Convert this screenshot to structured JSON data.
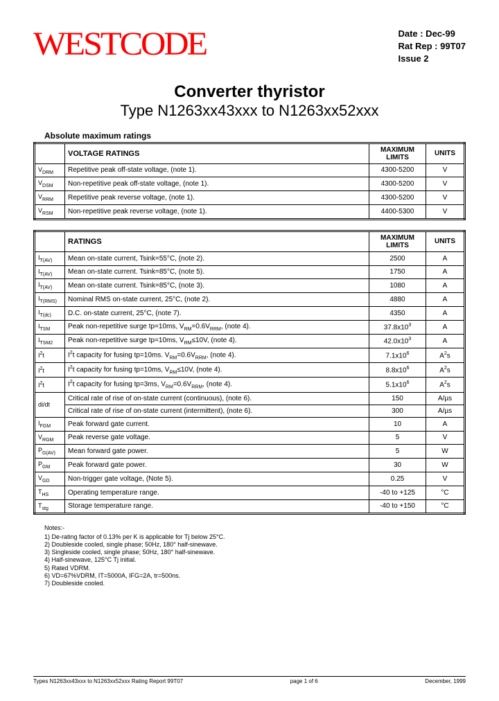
{
  "logo": "WESTCODE",
  "meta": {
    "date_label": "Date : Dec-99",
    "rat_rep": "Rat Rep : 99T07",
    "issue": "Issue 2"
  },
  "title": {
    "main": "Converter thyristor",
    "sub": "Type N1263xx43xxx to N1263xx52xxx"
  },
  "section1_label": "Absolute maximum ratings",
  "table1": {
    "head": [
      "",
      "VOLTAGE RATINGS",
      "MAXIMUM LIMITS",
      "UNITS"
    ],
    "rows": [
      {
        "sym": "V",
        "sub": "DRM",
        "desc": "Repetitive peak off-state voltage, (note 1).",
        "lim": "4300-5200",
        "unit": "V"
      },
      {
        "sym": "V",
        "sub": "DSM",
        "desc": "Non-repetitive peak off-state voltage, (note 1).",
        "lim": "4300-5200",
        "unit": "V"
      },
      {
        "sym": "V",
        "sub": "RRM",
        "desc": "Repetitive peak reverse voltage, (note 1).",
        "lim": "4300-5200",
        "unit": "V"
      },
      {
        "sym": "V",
        "sub": "RSM",
        "desc": "Non-repetitive peak reverse voltage, (note 1).",
        "lim": "4400-5300",
        "unit": "V"
      }
    ]
  },
  "table2": {
    "head": [
      "",
      "RATINGS",
      "MAXIMUM LIMITS",
      "UNITS"
    ],
    "rows": [
      {
        "sym": "I",
        "sub": "T(AV)",
        "desc": "Mean on-state current, Tsink=55°C, (note 2).",
        "lim": "2500",
        "unit": "A"
      },
      {
        "sym": "I",
        "sub": "T(AV)",
        "desc": "Mean on-state current. Tsink=85°C, (note 5).",
        "lim": "1750",
        "unit": "A"
      },
      {
        "sym": "I",
        "sub": "T(AV)",
        "desc": "Mean on-state current. Tsink=85°C, (note 3).",
        "lim": "1080",
        "unit": "A"
      },
      {
        "sym": "I",
        "sub": "T(RMS)",
        "desc": "Nominal RMS on-state current, 25°C, (note 2).",
        "lim": "4880",
        "unit": "A"
      },
      {
        "sym": "I",
        "sub": "T(dc)",
        "desc": "D.C. on-state current, 25°C, (note 7).",
        "lim": "4350",
        "unit": "A"
      },
      {
        "sym": "I",
        "sub": "TSM",
        "desc_html": "Peak non-repetitive surge tp=10ms, V<sub>RM</sub>=0.6V<sub>RRM</sub>, (note 4).",
        "lim_html": "37.8x10<sup>3</sup>",
        "unit": "A"
      },
      {
        "sym": "I",
        "sub": "TSM2",
        "desc_html": "Peak non-repetitive surge tp=10ms, V<sub>RM</sub>≤10V, (note 4).",
        "lim_html": "42.0x10<sup>3</sup>",
        "unit": "A"
      },
      {
        "sym_html": "I<sup>2</sup>t",
        "desc_html": "I<sup>2</sup>t capacity for fusing tp=10ms. V<sub>RM</sub>=0.6V<sub>RRM</sub>, (note 4).",
        "lim_html": "7.1x10<sup>6</sup>",
        "unit_html": "A<sup>2</sup>s"
      },
      {
        "sym_html": "I<sup>2</sup>t",
        "desc_html": "I<sup>2</sup>t capacity for fusing tp=10ms, V<sub>RM</sub>≤10V, (note 4).",
        "lim_html": "8.8x10<sup>6</sup>",
        "unit_html": "A<sup>2</sup>s"
      },
      {
        "sym_html": "I<sup>2</sup>t",
        "desc_html": "I<sup>2</sup>t capacity for fusing tp=3ms, V<sub>RM</sub>=0.6V<sub>RRM</sub>, (note 4).",
        "lim_html": "5.1x10<sup>6</sup>",
        "unit_html": "A<sup>2</sup>s"
      },
      {
        "sym": "di/dt",
        "rowspan": 2,
        "desc": "Critical rate of rise of on-state current (continuous), (note 6).",
        "lim": "150",
        "unit": "A/µs"
      },
      {
        "skip_sym": true,
        "desc": "Critical rate of rise of on-state current (intermittent), (note 6).",
        "lim": "300",
        "unit": "A/µs"
      },
      {
        "sym": "I",
        "sub": "FGM",
        "desc": "Peak forward gate current.",
        "lim": "10",
        "unit": "A"
      },
      {
        "sym": "V",
        "sub": "RGM",
        "desc": "Peak reverse gate voltage.",
        "lim": "5",
        "unit": "V"
      },
      {
        "sym": "P",
        "sub": "G(AV)",
        "desc": "Mean forward gate power.",
        "lim": "5",
        "unit": "W"
      },
      {
        "sym": "P",
        "sub": "GM",
        "desc": "Peak forward gate power.",
        "lim": "30",
        "unit": "W"
      },
      {
        "sym": "V",
        "sub": "GD",
        "desc": "Non-trigger gate voltage, (Note 5).",
        "lim": "0.25",
        "unit": "V"
      },
      {
        "sym": "T",
        "sub": "HS",
        "desc": "Operating temperature range.",
        "lim": "-40 to +125",
        "unit": "°C"
      },
      {
        "sym": "T",
        "sub": "stg",
        "desc": "Storage temperature range.",
        "lim": "-40 to +150",
        "unit": "°C"
      }
    ]
  },
  "notes": {
    "title": "Notes:-",
    "items": [
      "1)  De-rating factor of 0.13% per K is applicable for Tj below 25°C.",
      "2)  Doubleside cooled, single phase; 50Hz, 180° half-sinewave.",
      "3)  Singleside cooled, single phase; 50Hz, 180° half-sinewave.",
      "4)  Half-sinewave, 125°C Tj initial.",
      "5)  Rated VDRM.",
      "6)  VD=67%VDRM, IT=5000A, IFG=2A, tr=500ns.",
      "7)  Doubleside cooled."
    ]
  },
  "footer": {
    "left": "Types N1263xx43xxx to N1263xx52xxx Rating Report 99T07",
    "center": "page 1 of 6",
    "right": "December, 1999"
  }
}
